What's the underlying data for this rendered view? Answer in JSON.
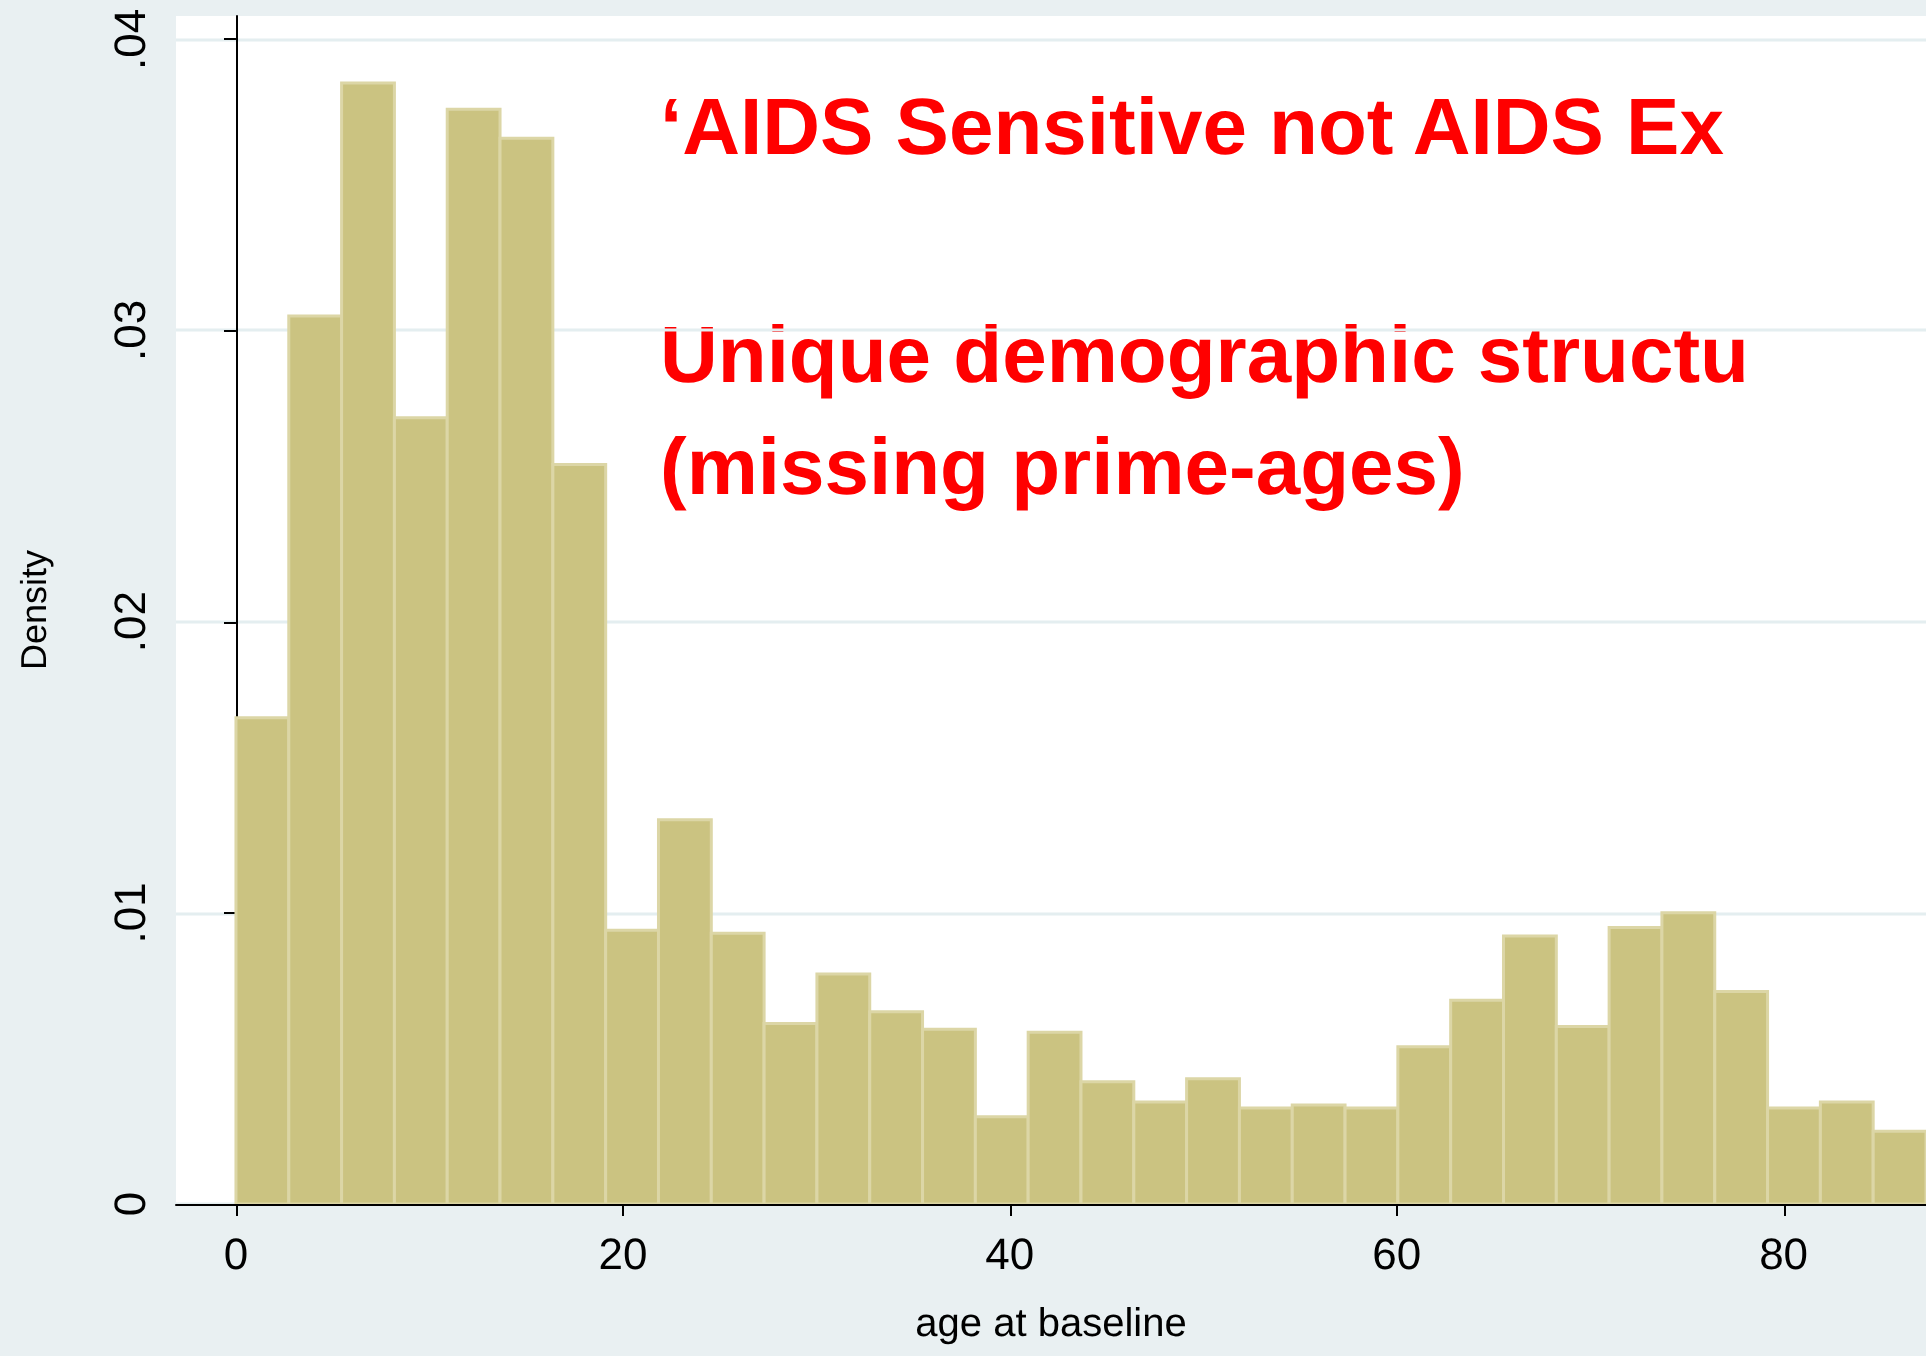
{
  "chart_data": {
    "type": "histogram",
    "xlabel": "age at baseline",
    "ylabel": "Density",
    "annotations": [
      "‘AIDS Sensitive not AIDS Ex",
      "Unique demographic structu",
      "(missing prime-ages)"
    ],
    "bins": [
      0,
      2.73,
      5.46,
      8.19,
      10.92,
      13.65,
      16.38,
      19.11,
      21.84,
      24.57,
      27.3,
      30.03,
      32.76,
      35.49,
      38.22,
      40.95,
      43.68,
      46.41,
      49.14,
      51.87,
      54.6,
      57.33,
      60.06,
      62.79,
      65.52,
      68.25,
      70.98,
      73.71,
      76.44,
      79.17,
      81.9,
      84.63,
      87.36
    ],
    "values": [
      0.0167,
      0.0305,
      0.0385,
      0.027,
      0.0376,
      0.0366,
      0.0254,
      0.0094,
      0.0132,
      0.0093,
      0.0062,
      0.0079,
      0.0066,
      0.006,
      0.003,
      0.0059,
      0.0042,
      0.0035,
      0.0043,
      0.0033,
      0.0034,
      0.0033,
      0.0054,
      0.007,
      0.0092,
      0.0061,
      0.0095,
      0.01,
      0.0073,
      0.0033,
      0.0035,
      0.0025
    ],
    "color": "#cbc381",
    "xlim": [
      -3.1,
      87.36
    ],
    "ylim": [
      0,
      0.0408
    ],
    "xticks": [
      0,
      20,
      40,
      60,
      80
    ],
    "yticks": [
      {
        "value": 0,
        "label": "0"
      },
      {
        "value": 0.01,
        "label": ".01"
      },
      {
        "value": 0.02,
        "label": ".02"
      },
      {
        "value": 0.03,
        "label": ".03"
      },
      {
        "value": 0.04,
        "label": ".04"
      }
    ],
    "grid": "y",
    "legend": false
  }
}
